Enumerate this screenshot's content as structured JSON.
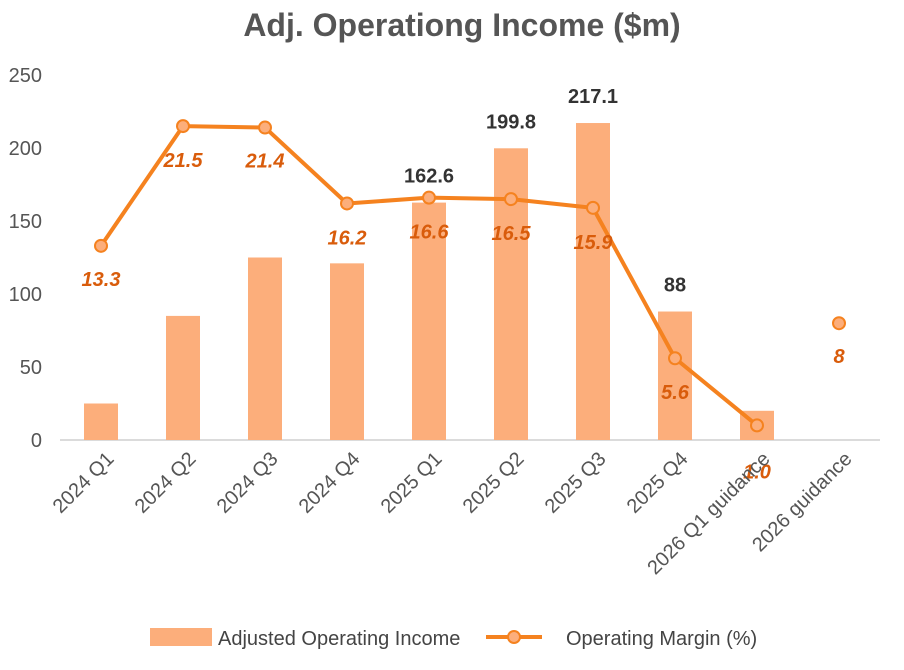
{
  "chart_data": {
    "type": "bar",
    "title": "Adj. Operationg Income ($m)",
    "categories": [
      "2024 Q1",
      "2024 Q2",
      "2024 Q3",
      "2024 Q4",
      "2025 Q1",
      "2025 Q2",
      "2025 Q3",
      "2025 Q4",
      "2026 Q1 guidance",
      "2026 guidance"
    ],
    "ylim": [
      0,
      250
    ],
    "yticks": [
      "0",
      "50",
      "100",
      "150",
      "200",
      "250"
    ],
    "grid": false,
    "legend": "bottom",
    "series": [
      {
        "name": "Adjusted Operating Income",
        "type": "bar",
        "color": "#fcae7b",
        "values": [
          25,
          85,
          125,
          121,
          162.6,
          199.8,
          217.1,
          88,
          20,
          null
        ],
        "labels": [
          "",
          "",
          "",
          "",
          "162.6",
          "199.8",
          "217.1",
          "88",
          "",
          ""
        ]
      },
      {
        "name": "Operating Margin (%)",
        "type": "line",
        "color": "#f5821f",
        "values": [
          13.3,
          21.5,
          21.4,
          16.2,
          16.6,
          16.5,
          15.9,
          5.6,
          1.0,
          8
        ],
        "labels": [
          "13.3",
          "21.5",
          "21.4",
          "16.2",
          "16.6",
          "16.5",
          "15.9",
          "5.6",
          "1.0",
          "8"
        ],
        "connected_count": 9
      }
    ]
  }
}
